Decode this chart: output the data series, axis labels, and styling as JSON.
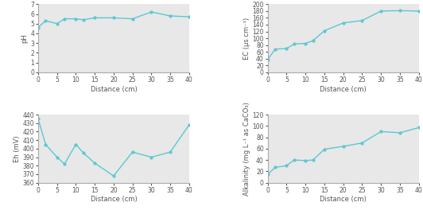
{
  "x": [
    0,
    2,
    5,
    7,
    10,
    12,
    15,
    20,
    25,
    30,
    35,
    40
  ],
  "pH": [
    4.6,
    5.3,
    5.0,
    5.5,
    5.5,
    5.4,
    5.6,
    5.6,
    5.5,
    6.2,
    5.8,
    5.7
  ],
  "EC": [
    38,
    68,
    70,
    83,
    85,
    93,
    122,
    145,
    152,
    180,
    181,
    180
  ],
  "Eh": [
    435,
    405,
    390,
    382,
    405,
    395,
    383,
    368,
    396,
    390,
    396,
    428
  ],
  "Alkalinity": [
    15,
    27,
    30,
    40,
    39,
    40,
    59,
    64,
    70,
    90,
    88,
    97
  ],
  "line_color": "#5BC8D2",
  "marker": "o",
  "markersize": 2.5,
  "linewidth": 1.0,
  "pH_ylabel": "pH",
  "EC_ylabel": "EC (μs cm⁻¹)",
  "Eh_ylabel": "Eh (mV)",
  "Alk_ylabel": "Alkalinity (mg L⁻¹ as CaCO₃)",
  "xlabel": "Distance (cm)",
  "pH_ylim": [
    0,
    7
  ],
  "pH_yticks": [
    0,
    1,
    2,
    3,
    4,
    5,
    6,
    7
  ],
  "EC_ylim": [
    0,
    200
  ],
  "EC_yticks": [
    0,
    20,
    40,
    60,
    80,
    100,
    120,
    140,
    160,
    180,
    200
  ],
  "Eh_ylim": [
    360,
    440
  ],
  "Eh_yticks": [
    360,
    370,
    380,
    390,
    400,
    410,
    420,
    430,
    440
  ],
  "Alk_ylim": [
    0,
    120
  ],
  "Alk_yticks": [
    0,
    20,
    40,
    60,
    80,
    100,
    120
  ],
  "xticks": [
    0,
    5,
    10,
    15,
    20,
    25,
    30,
    35,
    40
  ],
  "bg_color": "#E8E8E8",
  "xlabel_fontsize": 6,
  "ylabel_fontsize": 6,
  "tick_fontsize": 5.5,
  "spine_color": "#AAAAAA",
  "text_color": "#555555"
}
